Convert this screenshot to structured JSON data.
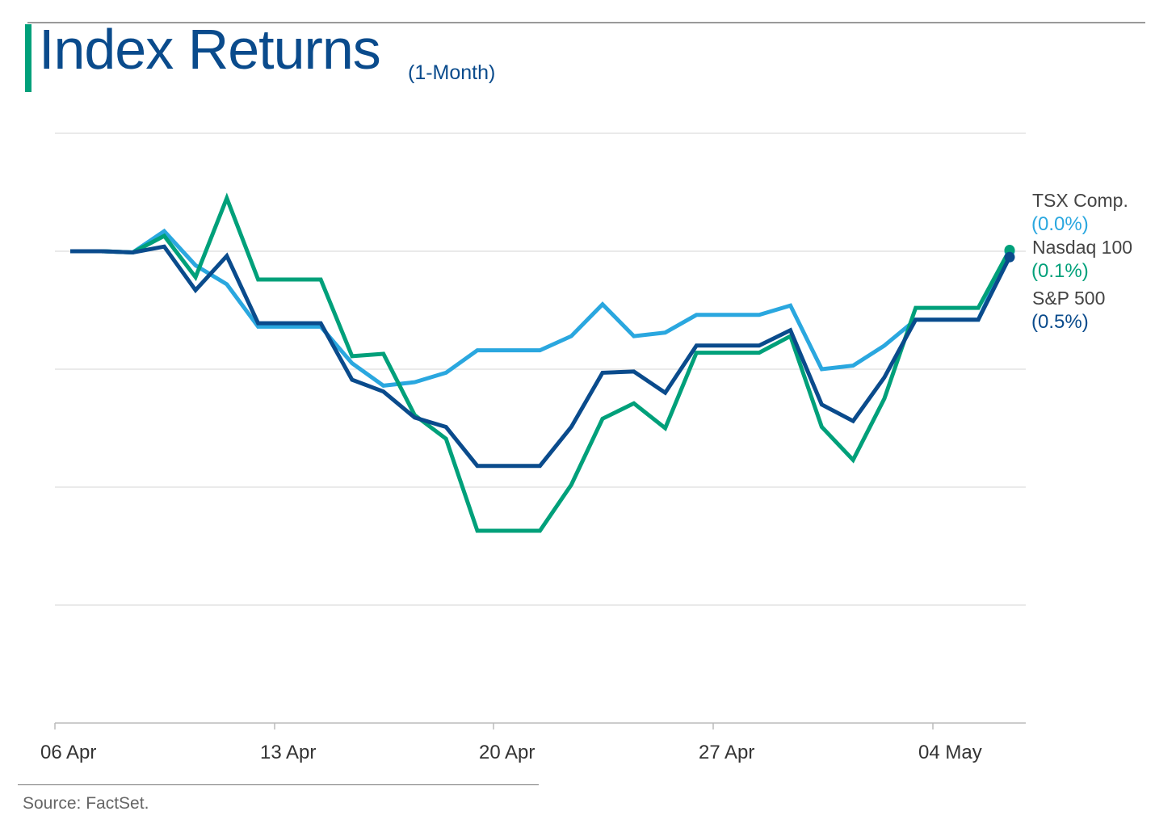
{
  "header": {
    "title": "Index Returns",
    "subtitle": "(1-Month)"
  },
  "footer": {
    "source": "Source: FactSet."
  },
  "colors": {
    "tsx": "#2aa7df",
    "nasdaq": "#00a07a",
    "sp500": "#0a4b8c",
    "grid": "#dddddd",
    "axis": "#bbbbbb",
    "tick_text": "#333333"
  },
  "chart_data": {
    "type": "line",
    "title": "Index Returns",
    "subtitle": "(1-Month)",
    "xlabel": "",
    "ylabel": "",
    "x_ticks": [
      "06 Apr",
      "13 Apr",
      "20 Apr",
      "27 Apr",
      "04 May"
    ],
    "x_tick_index": [
      0,
      7,
      14,
      21,
      28
    ],
    "n_points": 31,
    "grid": "horizontal",
    "legend": "right, end-of-line labels",
    "series": [
      {
        "key": "tsx",
        "name": "TSX Comp.",
        "end_label": "(0.0%)",
        "values": [
          0.0,
          0.0,
          -0.1,
          1.7,
          -1.2,
          -2.8,
          -6.4,
          -6.4,
          -6.4,
          -9.5,
          -11.4,
          -11.1,
          -10.3,
          -8.4,
          -8.4,
          -8.4,
          -7.2,
          -4.5,
          -7.2,
          -6.9,
          -5.4,
          -5.4,
          -5.4,
          -4.6,
          -10.0,
          -9.7,
          -8.0,
          -5.8,
          -5.8,
          -5.8,
          0.0
        ]
      },
      {
        "key": "nasdaq",
        "name": "Nasdaq 100",
        "end_label": "(0.1%)",
        "values": [
          0.0,
          0.0,
          -0.1,
          1.3,
          -2.2,
          4.5,
          -2.4,
          -2.4,
          -2.4,
          -8.9,
          -8.7,
          -13.9,
          -15.9,
          -23.7,
          -23.7,
          -23.7,
          -19.8,
          -14.2,
          -12.9,
          -15.0,
          -8.6,
          -8.6,
          -8.6,
          -7.2,
          -14.9,
          -17.7,
          -12.5,
          -4.8,
          -4.8,
          -4.8,
          0.1
        ]
      },
      {
        "key": "sp500",
        "name": "S&P 500",
        "end_label": "(0.5%)",
        "values": [
          0.0,
          0.0,
          -0.1,
          0.4,
          -3.3,
          -0.4,
          -6.1,
          -6.1,
          -6.1,
          -10.9,
          -11.9,
          -14.1,
          -14.9,
          -18.2,
          -18.2,
          -18.2,
          -14.9,
          -10.3,
          -10.2,
          -12.0,
          -8.0,
          -8.0,
          -8.0,
          -6.7,
          -13.0,
          -14.4,
          -10.7,
          -5.8,
          -5.8,
          -5.8,
          -0.5
        ]
      }
    ]
  }
}
